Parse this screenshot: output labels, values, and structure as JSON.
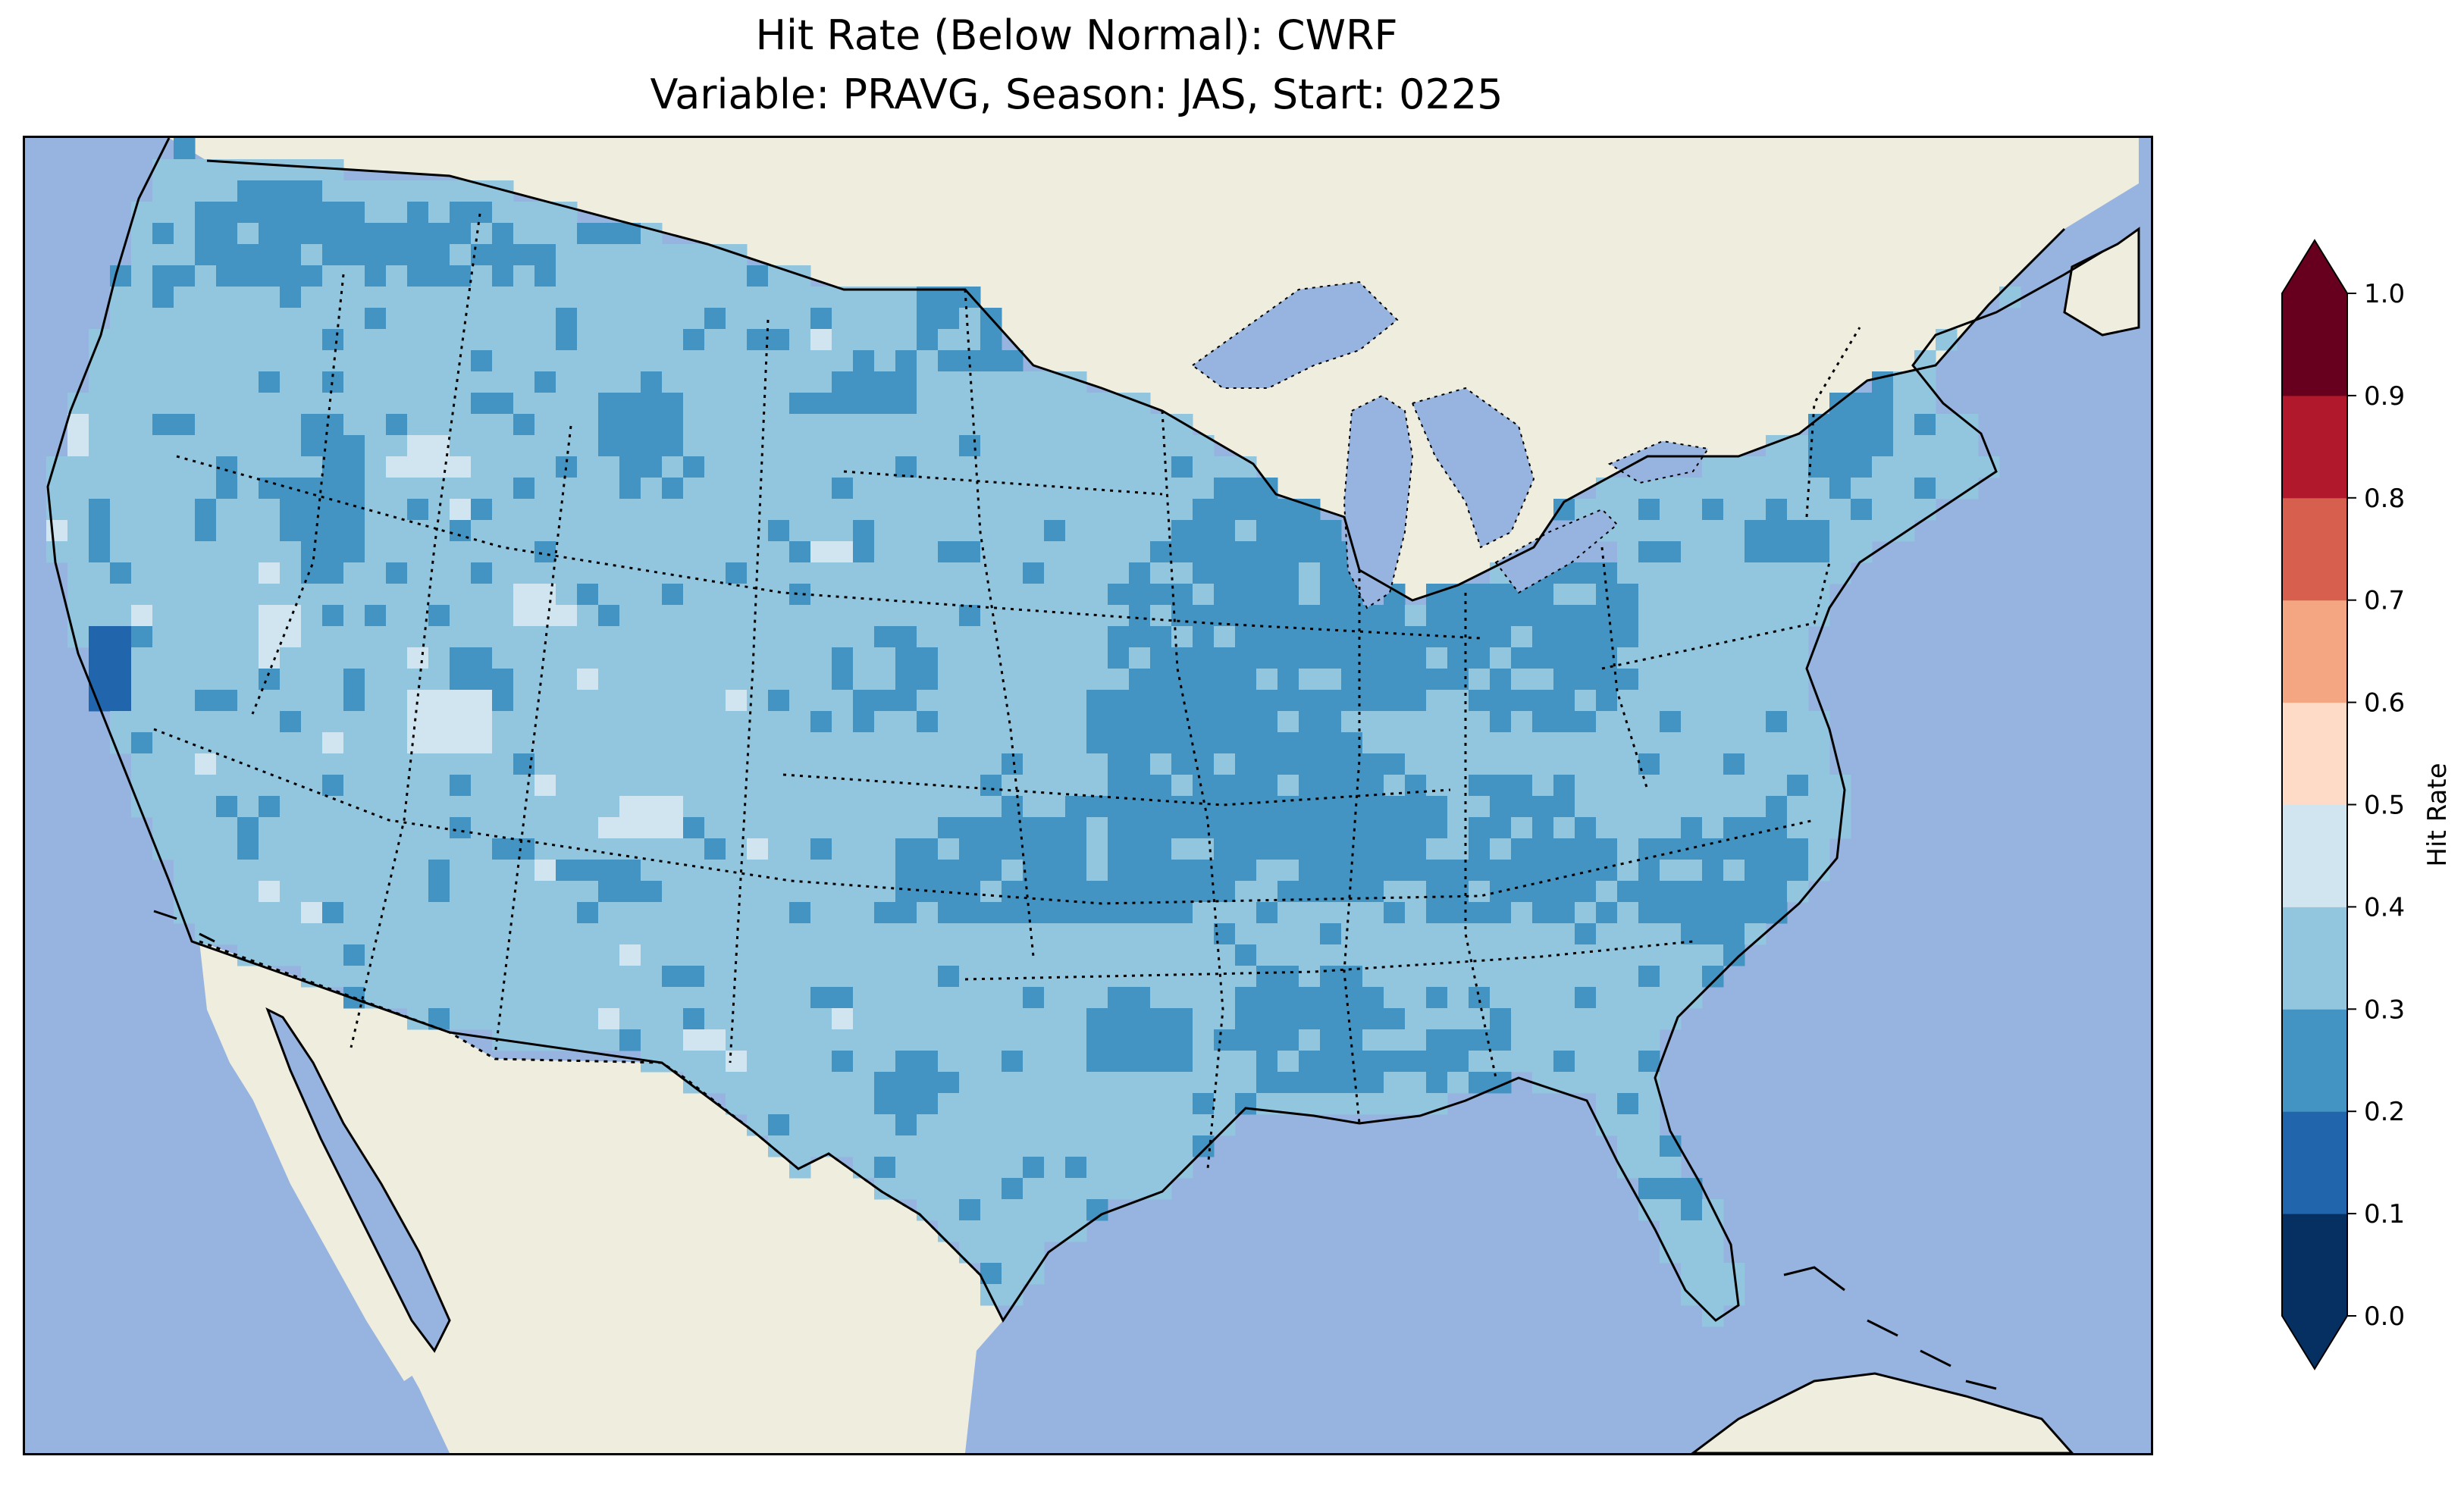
{
  "title": {
    "line1": "Hit Rate (Below Normal): CWRF",
    "line2": "Variable: PRAVG, Season: JAS, Start: 0225"
  },
  "colors": {
    "ocean": "#97b4e0",
    "land": "#efedde",
    "lakes": "#97b4e0",
    "border": "#000000"
  },
  "colorbar": {
    "label": "Hit Rate",
    "ticks": [
      "0.0",
      "0.1",
      "0.2",
      "0.3",
      "0.4",
      "0.5",
      "0.6",
      "0.7",
      "0.8",
      "0.9",
      "1.0"
    ],
    "bins": [
      {
        "from": 0.0,
        "to": 0.1,
        "color": "#053061"
      },
      {
        "from": 0.1,
        "to": 0.2,
        "color": "#2166ac"
      },
      {
        "from": 0.2,
        "to": 0.3,
        "color": "#4393c3"
      },
      {
        "from": 0.3,
        "to": 0.4,
        "color": "#92c5de"
      },
      {
        "from": 0.4,
        "to": 0.5,
        "color": "#d1e5f0"
      },
      {
        "from": 0.5,
        "to": 0.6,
        "color": "#fddbc7"
      },
      {
        "from": 0.6,
        "to": 0.7,
        "color": "#f4a582"
      },
      {
        "from": 0.7,
        "to": 0.8,
        "color": "#d6604d"
      },
      {
        "from": 0.8,
        "to": 0.9,
        "color": "#b2182b"
      },
      {
        "from": 0.9,
        "to": 1.0,
        "color": "#67001f"
      }
    ],
    "extend_low_color": "#053061",
    "extend_high_color": "#67001f"
  },
  "map": {
    "region": "Contiguous United States",
    "variable": "PRAVG",
    "season": "JAS",
    "start": "0225",
    "model": "CWRF",
    "dominant_bin": "0.3-0.4",
    "secondary_bin": "0.2-0.3",
    "sparse_bins": [
      "0.1-0.2",
      "0.4-0.5"
    ]
  }
}
